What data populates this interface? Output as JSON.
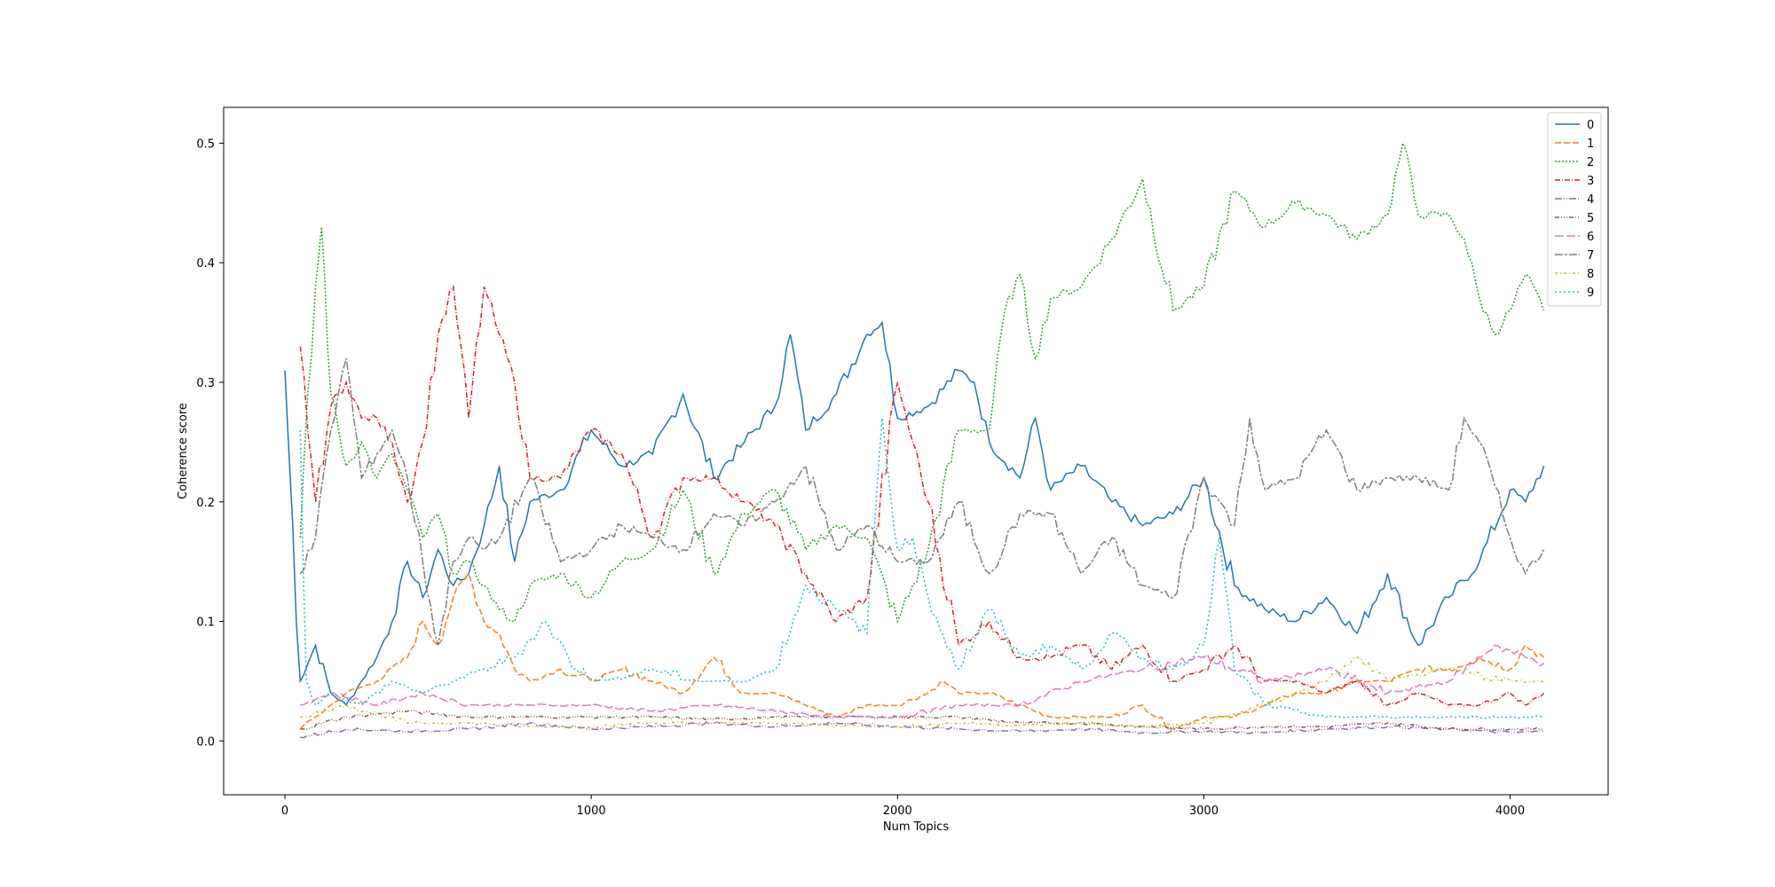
{
  "chart_data": {
    "type": "line",
    "title": "",
    "xlabel": "Num Topics",
    "ylabel": "Coherence score",
    "xlim": [
      -200,
      4320
    ],
    "ylim": [
      -0.045,
      0.53
    ],
    "xticks": [
      0,
      1000,
      2000,
      3000,
      4000
    ],
    "yticks": [
      0.0,
      0.1,
      0.2,
      0.3,
      0.4,
      0.5
    ],
    "grid": false,
    "legend_position": "top-right",
    "series": [
      {
        "name": "0",
        "color": "#1f77b4",
        "dash": "",
        "x": [
          0,
          50,
          100,
          150,
          200,
          250,
          300,
          350,
          400,
          450,
          500,
          550,
          600,
          650,
          700,
          750,
          800,
          900,
          1000,
          1100,
          1200,
          1300,
          1400,
          1500,
          1600,
          1650,
          1700,
          1800,
          1900,
          1950,
          2000,
          2100,
          2200,
          2250,
          2300,
          2400,
          2450,
          2500,
          2600,
          2700,
          2800,
          2900,
          3000,
          3100,
          3200,
          3300,
          3400,
          3500,
          3600,
          3700,
          3800,
          3900,
          4000,
          4050,
          4110
        ],
        "values": [
          0.31,
          0.05,
          0.08,
          0.04,
          0.03,
          0.05,
          0.07,
          0.1,
          0.15,
          0.12,
          0.16,
          0.13,
          0.14,
          0.18,
          0.23,
          0.15,
          0.2,
          0.21,
          0.26,
          0.23,
          0.24,
          0.29,
          0.22,
          0.25,
          0.28,
          0.34,
          0.26,
          0.29,
          0.34,
          0.35,
          0.27,
          0.28,
          0.31,
          0.3,
          0.25,
          0.22,
          0.27,
          0.21,
          0.23,
          0.2,
          0.18,
          0.19,
          0.22,
          0.13,
          0.11,
          0.1,
          0.12,
          0.09,
          0.14,
          0.08,
          0.12,
          0.15,
          0.21,
          0.2,
          0.23
        ]
      },
      {
        "name": "1",
        "color": "#ff7f0e",
        "dash": "7,3",
        "x": [
          50,
          100,
          150,
          200,
          300,
          400,
          450,
          500,
          550,
          600,
          650,
          700,
          750,
          800,
          900,
          1000,
          1100,
          1200,
          1300,
          1400,
          1500,
          1600,
          1700,
          1800,
          1900,
          2000,
          2100,
          2150,
          2200,
          2300,
          2400,
          2500,
          2600,
          2700,
          2800,
          2900,
          3000,
          3100,
          3200,
          3300,
          3400,
          3500,
          3600,
          3700,
          3800,
          3900,
          4000,
          4050,
          4110
        ],
        "values": [
          0.01,
          0.02,
          0.03,
          0.04,
          0.05,
          0.07,
          0.1,
          0.08,
          0.12,
          0.14,
          0.1,
          0.09,
          0.06,
          0.05,
          0.06,
          0.05,
          0.06,
          0.05,
          0.04,
          0.07,
          0.04,
          0.04,
          0.03,
          0.02,
          0.03,
          0.03,
          0.04,
          0.05,
          0.04,
          0.04,
          0.03,
          0.02,
          0.02,
          0.02,
          0.03,
          0.01,
          0.02,
          0.02,
          0.03,
          0.04,
          0.04,
          0.05,
          0.05,
          0.06,
          0.06,
          0.07,
          0.06,
          0.08,
          0.07
        ]
      },
      {
        "name": "2",
        "color": "#2ca02c",
        "dash": "2,2",
        "x": [
          50,
          100,
          120,
          150,
          200,
          250,
          300,
          350,
          400,
          450,
          500,
          550,
          600,
          650,
          700,
          750,
          800,
          900,
          1000,
          1100,
          1200,
          1300,
          1400,
          1500,
          1600,
          1700,
          1800,
          1900,
          2000,
          2100,
          2200,
          2300,
          2350,
          2400,
          2450,
          2500,
          2600,
          2700,
          2800,
          2900,
          3000,
          3100,
          3200,
          3300,
          3400,
          3500,
          3600,
          3650,
          3700,
          3800,
          3850,
          3900,
          3950,
          4000,
          4050,
          4110
        ],
        "values": [
          0.17,
          0.38,
          0.43,
          0.29,
          0.23,
          0.25,
          0.22,
          0.24,
          0.21,
          0.17,
          0.19,
          0.14,
          0.15,
          0.13,
          0.11,
          0.1,
          0.13,
          0.14,
          0.12,
          0.15,
          0.16,
          0.21,
          0.14,
          0.19,
          0.21,
          0.16,
          0.18,
          0.17,
          0.1,
          0.16,
          0.26,
          0.26,
          0.36,
          0.39,
          0.32,
          0.37,
          0.38,
          0.42,
          0.47,
          0.36,
          0.38,
          0.46,
          0.43,
          0.45,
          0.44,
          0.42,
          0.44,
          0.5,
          0.44,
          0.44,
          0.42,
          0.37,
          0.34,
          0.36,
          0.39,
          0.36
        ]
      },
      {
        "name": "3",
        "color": "#d62728",
        "dash": "6,2,1,2",
        "x": [
          50,
          100,
          150,
          200,
          250,
          300,
          350,
          400,
          450,
          500,
          550,
          600,
          650,
          700,
          750,
          800,
          900,
          1000,
          1100,
          1200,
          1300,
          1400,
          1500,
          1600,
          1700,
          1800,
          1900,
          2000,
          2050,
          2100,
          2200,
          2300,
          2400,
          2500,
          2600,
          2700,
          2800,
          2900,
          3000,
          3100,
          3200,
          3300,
          3400,
          3500,
          3600,
          3700,
          3800,
          3900,
          4000,
          4050,
          4110
        ],
        "values": [
          0.33,
          0.2,
          0.28,
          0.3,
          0.27,
          0.27,
          0.25,
          0.2,
          0.25,
          0.34,
          0.38,
          0.27,
          0.38,
          0.34,
          0.3,
          0.22,
          0.22,
          0.26,
          0.24,
          0.17,
          0.22,
          0.22,
          0.2,
          0.18,
          0.14,
          0.1,
          0.12,
          0.3,
          0.25,
          0.2,
          0.08,
          0.1,
          0.07,
          0.07,
          0.08,
          0.06,
          0.08,
          0.05,
          0.06,
          0.08,
          0.05,
          0.05,
          0.04,
          0.05,
          0.03,
          0.04,
          0.03,
          0.03,
          0.04,
          0.03,
          0.04
        ]
      },
      {
        "name": "4",
        "color": "#9467bd",
        "dash": "8,2,1,2,1,2",
        "x": [
          50,
          200,
          400,
          600,
          800,
          1000,
          1200,
          1400,
          1600,
          1800,
          2000,
          2200,
          2400,
          2600,
          2800,
          3000,
          3200,
          3400,
          3600,
          3800,
          4000,
          4110
        ],
        "values": [
          0.003,
          0.01,
          0.008,
          0.01,
          0.015,
          0.01,
          0.012,
          0.015,
          0.012,
          0.015,
          0.012,
          0.01,
          0.008,
          0.01,
          0.007,
          0.008,
          0.007,
          0.01,
          0.012,
          0.01,
          0.007,
          0.008
        ]
      },
      {
        "name": "5",
        "color": "#8c564b",
        "dash": "5,2,1,2,1,2,1,2",
        "x": [
          50,
          200,
          400,
          600,
          800,
          1000,
          1200,
          1400,
          1600,
          1800,
          2000,
          2200,
          2400,
          2600,
          2800,
          3000,
          3200,
          3400,
          3600,
          3800,
          4000,
          4110
        ],
        "values": [
          0.01,
          0.02,
          0.025,
          0.02,
          0.02,
          0.02,
          0.02,
          0.018,
          0.02,
          0.02,
          0.02,
          0.02,
          0.015,
          0.015,
          0.012,
          0.01,
          0.012,
          0.012,
          0.015,
          0.01,
          0.01,
          0.01
        ]
      },
      {
        "name": "6",
        "color": "#e377c2",
        "dash": "10,3",
        "x": [
          50,
          150,
          300,
          450,
          600,
          800,
          1000,
          1200,
          1400,
          1600,
          1800,
          2000,
          2200,
          2400,
          2600,
          2800,
          3000,
          3200,
          3400,
          3600,
          3800,
          3950,
          4050,
          4110
        ],
        "values": [
          0.03,
          0.04,
          0.03,
          0.04,
          0.03,
          0.03,
          0.03,
          0.025,
          0.03,
          0.025,
          0.02,
          0.02,
          0.03,
          0.03,
          0.05,
          0.06,
          0.07,
          0.05,
          0.06,
          0.04,
          0.05,
          0.08,
          0.07,
          0.065
        ]
      },
      {
        "name": "7",
        "color": "#7f7f7f",
        "dash": "9,2,3,2",
        "x": [
          50,
          100,
          150,
          200,
          250,
          300,
          350,
          400,
          450,
          500,
          550,
          600,
          650,
          700,
          800,
          900,
          1000,
          1100,
          1200,
          1300,
          1400,
          1500,
          1600,
          1700,
          1800,
          1900,
          2000,
          2100,
          2200,
          2300,
          2400,
          2500,
          2600,
          2700,
          2800,
          2900,
          3000,
          3100,
          3150,
          3200,
          3300,
          3400,
          3500,
          3600,
          3700,
          3800,
          3850,
          3900,
          4000,
          4050,
          4110
        ],
        "values": [
          0.14,
          0.17,
          0.26,
          0.32,
          0.22,
          0.24,
          0.26,
          0.22,
          0.15,
          0.08,
          0.15,
          0.17,
          0.16,
          0.17,
          0.22,
          0.15,
          0.16,
          0.18,
          0.17,
          0.16,
          0.19,
          0.18,
          0.2,
          0.23,
          0.16,
          0.18,
          0.15,
          0.15,
          0.2,
          0.14,
          0.19,
          0.19,
          0.14,
          0.17,
          0.13,
          0.12,
          0.22,
          0.18,
          0.27,
          0.21,
          0.22,
          0.26,
          0.21,
          0.22,
          0.22,
          0.21,
          0.27,
          0.25,
          0.17,
          0.14,
          0.16
        ]
      },
      {
        "name": "8",
        "color": "#bcbd22",
        "dash": "3,3,1,3",
        "x": [
          50,
          200,
          400,
          600,
          800,
          1000,
          1200,
          1400,
          1600,
          1800,
          2000,
          2200,
          2400,
          2600,
          2800,
          3000,
          3200,
          3400,
          3500,
          3600,
          3800,
          4000,
          4110
        ],
        "values": [
          0.02,
          0.03,
          0.015,
          0.015,
          0.012,
          0.012,
          0.015,
          0.015,
          0.015,
          0.013,
          0.012,
          0.015,
          0.013,
          0.015,
          0.012,
          0.015,
          0.03,
          0.05,
          0.07,
          0.05,
          0.06,
          0.05,
          0.05
        ]
      },
      {
        "name": "9",
        "color": "#17becf",
        "dash": "2,3",
        "x": [
          50,
          70,
          100,
          150,
          250,
          350,
          450,
          550,
          650,
          750,
          850,
          950,
          1050,
          1200,
          1350,
          1500,
          1600,
          1700,
          1800,
          1900,
          1950,
          2000,
          2050,
          2100,
          2200,
          2300,
          2400,
          2500,
          2600,
          2700,
          2800,
          2900,
          3000,
          3050,
          3100,
          3200,
          3400,
          3600,
          3800,
          4000,
          4110
        ],
        "values": [
          0.26,
          0.05,
          0.03,
          0.04,
          0.03,
          0.05,
          0.04,
          0.05,
          0.06,
          0.07,
          0.1,
          0.06,
          0.05,
          0.06,
          0.05,
          0.05,
          0.06,
          0.13,
          0.11,
          0.09,
          0.27,
          0.16,
          0.17,
          0.12,
          0.06,
          0.11,
          0.07,
          0.08,
          0.06,
          0.09,
          0.07,
          0.06,
          0.08,
          0.17,
          0.06,
          0.03,
          0.02,
          0.02,
          0.02,
          0.02,
          0.02
        ]
      }
    ]
  }
}
